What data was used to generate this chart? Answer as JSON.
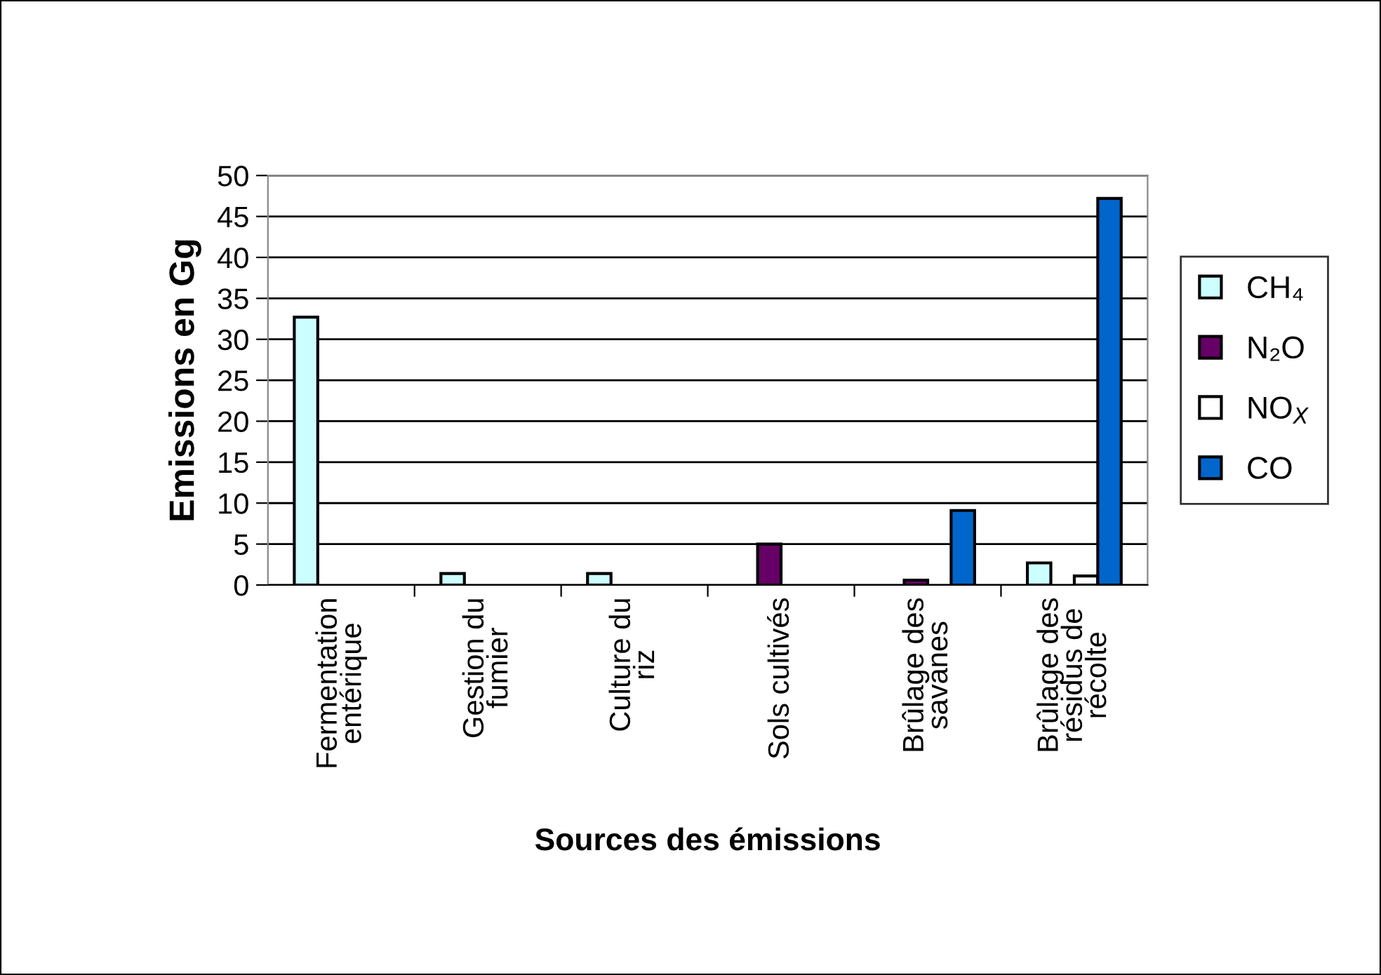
{
  "chart_data": {
    "type": "bar",
    "xlabel": "Sources des émissions",
    "ylabel": "Emissions en Gg",
    "categories": [
      "Fermentation\nentérique",
      "Gestion du\nfumier",
      "Culture du\nriz",
      "Sols cultivés",
      "Brûlage des\nsavanes",
      "Brûlage des\nrésidus de\nrécolte"
    ],
    "series": [
      {
        "name": "CH₄",
        "color": "#ccffff",
        "values": [
          32.7,
          1.4,
          1.4,
          null,
          null,
          2.7
        ]
      },
      {
        "name": "N₂O",
        "color": "#660066",
        "values": [
          null,
          null,
          null,
          5.0,
          0.6,
          null
        ]
      },
      {
        "name": "NO$_{X}$",
        "color": "#ffffff",
        "values": [
          null,
          null,
          null,
          null,
          null,
          1.1
        ]
      },
      {
        "name": "CO",
        "color": "#0066cc",
        "values": [
          null,
          null,
          null,
          null,
          9.1,
          47.2
        ]
      }
    ],
    "ylim": [
      0,
      50
    ],
    "yticks": [
      0,
      5,
      10,
      15,
      20,
      25,
      30,
      35,
      40,
      45,
      50
    ],
    "grid": "y",
    "legend": "right"
  }
}
